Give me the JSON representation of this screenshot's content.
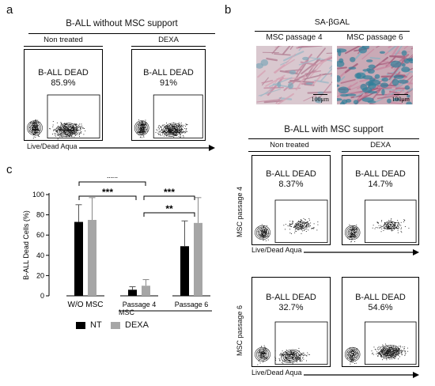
{
  "panel_a": {
    "letter": "a",
    "title": "B-ALL without MSC support",
    "conditions": [
      "Non treated",
      "DEXA"
    ],
    "gates": [
      {
        "label": "B-ALL DEAD",
        "percent": "85.9%"
      },
      {
        "label": "B-ALL DEAD",
        "percent": "91%"
      }
    ],
    "x_axis_label": "Live/Dead Aqua"
  },
  "panel_b": {
    "letter": "b",
    "stain_title": "SA-βGAL",
    "micrographs": [
      {
        "caption": "MSC passage 4",
        "scale": "100μm"
      },
      {
        "caption": "MSC passage 6",
        "scale": "100μm"
      }
    ],
    "title": "B-ALL with MSC support",
    "conditions": [
      "Non treated",
      "DEXA"
    ],
    "rows": [
      {
        "row_label": "MSC passage 4",
        "gates": [
          {
            "label": "B-ALL DEAD",
            "percent": "8.37%"
          },
          {
            "label": "B-ALL DEAD",
            "percent": "14.7%"
          }
        ]
      },
      {
        "row_label": "MSC passage 6",
        "gates": [
          {
            "label": "B-ALL DEAD",
            "percent": "32.7%"
          },
          {
            "label": "B-ALL DEAD",
            "percent": "54.6%"
          }
        ]
      }
    ],
    "x_axis_label": "Live/Dead Aqua"
  },
  "panel_c": {
    "letter": "c",
    "msc_label": "MSC",
    "legend": [
      {
        "name": "NT",
        "color": "#000000"
      },
      {
        "name": "DEXA",
        "color": "#a6a6a6"
      }
    ]
  },
  "chart_data": {
    "type": "bar",
    "categories": [
      "W/O MSC",
      "Passage 4",
      "Passage 6"
    ],
    "ylabel": "B-ALL Dead Cells (%)",
    "ylim": [
      0,
      100
    ],
    "yticks": [
      0,
      20,
      40,
      60,
      80,
      100
    ],
    "series": [
      {
        "name": "NT",
        "color": "#000000",
        "values": [
          73,
          6,
          49
        ],
        "errors": [
          17,
          3,
          25
        ]
      },
      {
        "name": "DEXA",
        "color": "#a6a6a6",
        "values": [
          75,
          10,
          72
        ],
        "errors": [
          22,
          6,
          25
        ]
      }
    ],
    "significance": [
      {
        "label": "***",
        "from": "W/O MSC",
        "to": "Passage 4",
        "level": "top"
      },
      {
        "label": "***",
        "from": "W/O MSC",
        "to": "Passage 4",
        "level": "low"
      },
      {
        "label": "***",
        "from": "Passage 4",
        "to": "Passage 6",
        "level": "upper"
      },
      {
        "label": "**",
        "from": "Passage 4",
        "to": "Passage 6",
        "level": "lower"
      }
    ]
  }
}
